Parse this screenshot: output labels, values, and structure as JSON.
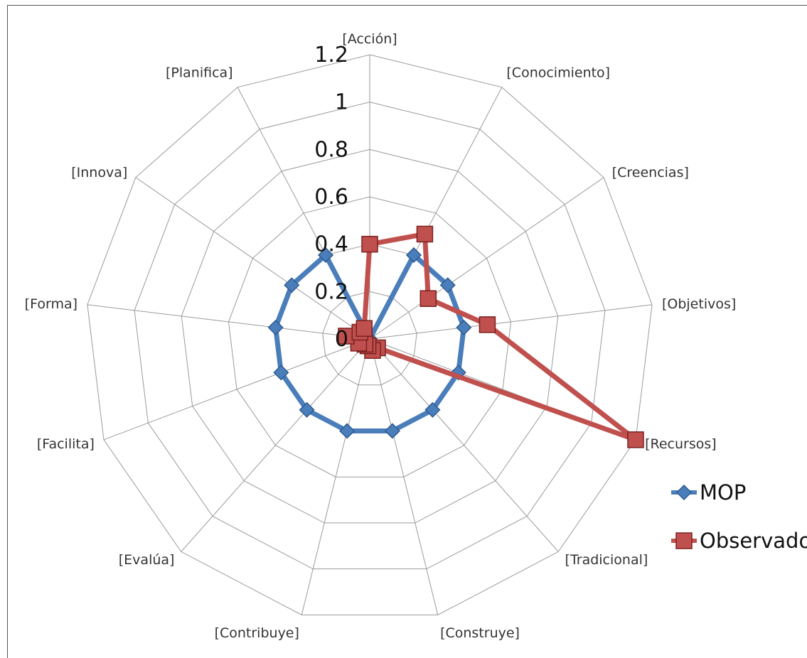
{
  "chart_data": {
    "type": "radar",
    "categories": [
      "[Acción]",
      "[Conocimiento]",
      "[Creencias]",
      "[Objetivos]",
      "[Recursos]",
      "[Tradicional]",
      "[Construye]",
      "[Contribuye]",
      "[Evalúa]",
      "[Facilita]",
      "[Forma]",
      "[Innova]",
      "[Planifica]"
    ],
    "rlim": [
      0,
      1.2
    ],
    "ticks": [
      "0",
      "0.2",
      "0.4",
      "0.6",
      "0.8",
      "1",
      "1.2"
    ],
    "tick_values": [
      0,
      0.2,
      0.4,
      0.6,
      0.8,
      1.0,
      1.2
    ],
    "grid": true,
    "legend_position": "right",
    "series": [
      {
        "name": "MOP",
        "color": "#4a7ebb",
        "marker": "diamond",
        "values": [
          0.0,
          0.4,
          0.4,
          0.4,
          0.4,
          0.4,
          0.4,
          0.4,
          0.4,
          0.4,
          0.4,
          0.4,
          0.4
        ]
      },
      {
        "name": "Observado",
        "color": "#c0504d",
        "marker": "square",
        "values": [
          0.4,
          0.5,
          0.3,
          0.5,
          1.2,
          0.05,
          0.05,
          0.03,
          0.03,
          0.05,
          0.1,
          0.05,
          0.05
        ]
      }
    ]
  }
}
